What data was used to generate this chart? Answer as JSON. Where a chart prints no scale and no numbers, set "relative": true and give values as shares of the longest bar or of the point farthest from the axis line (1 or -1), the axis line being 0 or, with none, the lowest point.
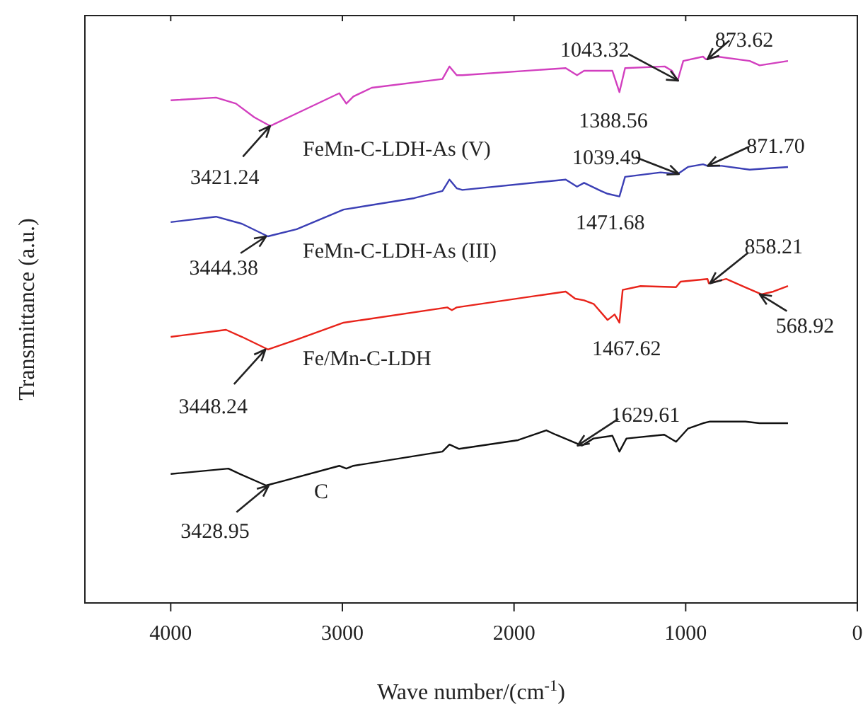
{
  "chart_data": {
    "type": "line",
    "relative": true,
    "xlabel": "Wave number/(cm$^{-1}$)",
    "ylabel": "Transmittance (a.u.)",
    "xlim": [
      4500,
      0
    ],
    "xticks": [
      4000,
      3000,
      2000,
      1000,
      0
    ],
    "grid": false,
    "marker": "none",
    "line_style": "solid",
    "series": [
      {
        "name": "FeMn-C-LDH-As (V)",
        "color": "#d23fbf",
        "x": [
          4000,
          3736,
          3620,
          3513,
          3421,
          3266,
          3018,
          2977,
          2936,
          2829,
          2417,
          2376,
          2334,
          2301,
          1699,
          1633,
          1592,
          1427,
          1386,
          1353,
          1122,
          1080,
          1047,
          1014,
          899,
          882,
          817,
          627,
          569,
          404
        ],
        "values": [
          0.92,
          0.925,
          0.914,
          0.889,
          0.873,
          0.896,
          0.933,
          0.914,
          0.927,
          0.943,
          0.959,
          0.982,
          0.966,
          0.966,
          0.979,
          0.966,
          0.974,
          0.974,
          0.935,
          0.979,
          0.982,
          0.974,
          0.956,
          0.992,
          1.0,
          0.995,
          1.0,
          0.992,
          0.984,
          0.992
        ]
      },
      {
        "name": "FeMn-C-LDH-As (III)",
        "color": "#3b3fb5",
        "x": [
          4000,
          3736,
          3585,
          3434,
          3266,
          2993,
          2581,
          2417,
          2376,
          2334,
          2301,
          1699,
          1633,
          1592,
          1493,
          1455,
          1386,
          1353,
          1146,
          1047,
          987,
          899,
          873,
          790,
          627,
          544,
          404
        ],
        "values": [
          0.697,
          0.707,
          0.694,
          0.671,
          0.684,
          0.72,
          0.741,
          0.754,
          0.775,
          0.759,
          0.756,
          0.775,
          0.762,
          0.769,
          0.754,
          0.749,
          0.744,
          0.78,
          0.788,
          0.785,
          0.798,
          0.803,
          0.8,
          0.8,
          0.793,
          0.795,
          0.798
        ]
      },
      {
        "name": "Fe/Mn-C-LDH",
        "color": "#e8231a",
        "x": [
          4000,
          3678,
          3585,
          3434,
          3266,
          2993,
          2389,
          2362,
          2334,
          1699,
          1644,
          1592,
          1535,
          1455,
          1414,
          1386,
          1367,
          1263,
          1056,
          1030,
          873,
          865,
          764,
          654,
          558,
          489,
          404
        ],
        "values": [
          0.487,
          0.5,
          0.487,
          0.464,
          0.482,
          0.513,
          0.541,
          0.536,
          0.541,
          0.57,
          0.557,
          0.554,
          0.547,
          0.518,
          0.528,
          0.513,
          0.573,
          0.58,
          0.578,
          0.588,
          0.593,
          0.585,
          0.593,
          0.578,
          0.565,
          0.57,
          0.58
        ]
      },
      {
        "name": "C",
        "color": "#111111",
        "x": [
          4000,
          3664,
          3596,
          3444,
          3348,
          3018,
          2977,
          2936,
          2417,
          2376,
          2320,
          1977,
          1812,
          1757,
          1605,
          1537,
          1427,
          1386,
          1345,
          1125,
          1056,
          987,
          899,
          858,
          652,
          570,
          404
        ],
        "values": [
          0.236,
          0.246,
          0.236,
          0.215,
          0.223,
          0.251,
          0.246,
          0.251,
          0.277,
          0.29,
          0.282,
          0.298,
          0.316,
          0.308,
          0.288,
          0.301,
          0.306,
          0.277,
          0.301,
          0.308,
          0.295,
          0.319,
          0.329,
          0.332,
          0.332,
          0.329,
          0.329
        ]
      }
    ],
    "annotations": [
      {
        "text": "3421.24",
        "x": 3421.24,
        "y": 0.873
      },
      {
        "text": "1043.32",
        "x": 1043.32,
        "y": 0.956
      },
      {
        "text": "1388.56",
        "x": 1388.56,
        "y": 0.935
      },
      {
        "text": "873.62",
        "x": 873.62,
        "y": 0.995
      },
      {
        "text": "3444.38",
        "x": 3444.38,
        "y": 0.671
      },
      {
        "text": "1039.49",
        "x": 1039.49,
        "y": 0.785
      },
      {
        "text": "1471.68",
        "x": 1471.68,
        "y": 0.749
      },
      {
        "text": "871.70",
        "x": 871.7,
        "y": 0.8
      },
      {
        "text": "3448.24",
        "x": 3448.24,
        "y": 0.464
      },
      {
        "text": "1467.62",
        "x": 1467.62,
        "y": 0.518
      },
      {
        "text": "858.21",
        "x": 858.21,
        "y": 0.585
      },
      {
        "text": "568.92",
        "x": 568.92,
        "y": 0.565
      },
      {
        "text": "3428.95",
        "x": 3428.95,
        "y": 0.215
      },
      {
        "text": "1629.61",
        "x": 1629.61,
        "y": 0.288
      }
    ]
  }
}
